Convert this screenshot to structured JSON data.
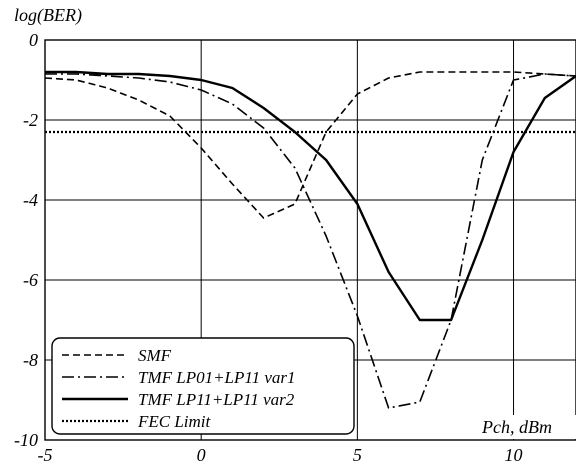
{
  "chart_data": {
    "type": "line",
    "title": "",
    "xlabel": "Pch, dBm",
    "ylabel": "log(BER)",
    "xlim": [
      -5,
      12
    ],
    "ylim": [
      -10,
      0
    ],
    "x_ticks": [
      -5,
      0,
      5,
      10
    ],
    "y_ticks": [
      0,
      -2,
      -4,
      -6,
      -8,
      -10
    ],
    "grid": true,
    "legend_position": "bottom-left",
    "series": [
      {
        "name": "SMF",
        "style": "dashed",
        "x": [
          -5,
          -4,
          -3,
          -2,
          -1,
          0,
          1,
          2,
          3,
          4,
          5,
          6,
          7,
          8,
          9,
          10,
          11,
          12
        ],
        "y": [
          -0.95,
          -1.0,
          -1.2,
          -1.5,
          -1.9,
          -2.7,
          -3.6,
          -4.45,
          -4.1,
          -2.3,
          -1.35,
          -0.95,
          -0.8,
          -0.8,
          -0.8,
          -0.8,
          -0.85,
          -0.9
        ]
      },
      {
        "name": "TMF LP01+LP11 var1",
        "style": "dashdot",
        "x": [
          -5,
          -4,
          -3,
          -2,
          -1,
          0,
          1,
          2,
          3,
          4,
          5,
          6,
          7,
          8,
          9,
          10,
          11,
          12
        ],
        "y": [
          -0.85,
          -0.85,
          -0.9,
          -0.95,
          -1.05,
          -1.25,
          -1.6,
          -2.2,
          -3.2,
          -4.9,
          -6.9,
          -9.2,
          -9.05,
          -7.0,
          -3.0,
          -1.0,
          -0.85,
          -0.9
        ]
      },
      {
        "name": "TMF LP11+LP11 var2",
        "style": "solid",
        "x": [
          -5,
          -4,
          -3,
          -2,
          -1,
          0,
          1,
          2,
          3,
          4,
          5,
          6,
          7,
          8,
          9,
          10,
          11,
          12
        ],
        "y": [
          -0.8,
          -0.8,
          -0.85,
          -0.85,
          -0.9,
          -1.0,
          -1.2,
          -1.7,
          -2.3,
          -3.0,
          -4.1,
          -5.8,
          -7.0,
          -7.0,
          -5.0,
          -2.8,
          -1.45,
          -0.9
        ]
      },
      {
        "name": "FEC Limit",
        "style": "dotted",
        "x": [
          -5,
          12
        ],
        "y": [
          -2.3,
          -2.3
        ]
      }
    ]
  }
}
